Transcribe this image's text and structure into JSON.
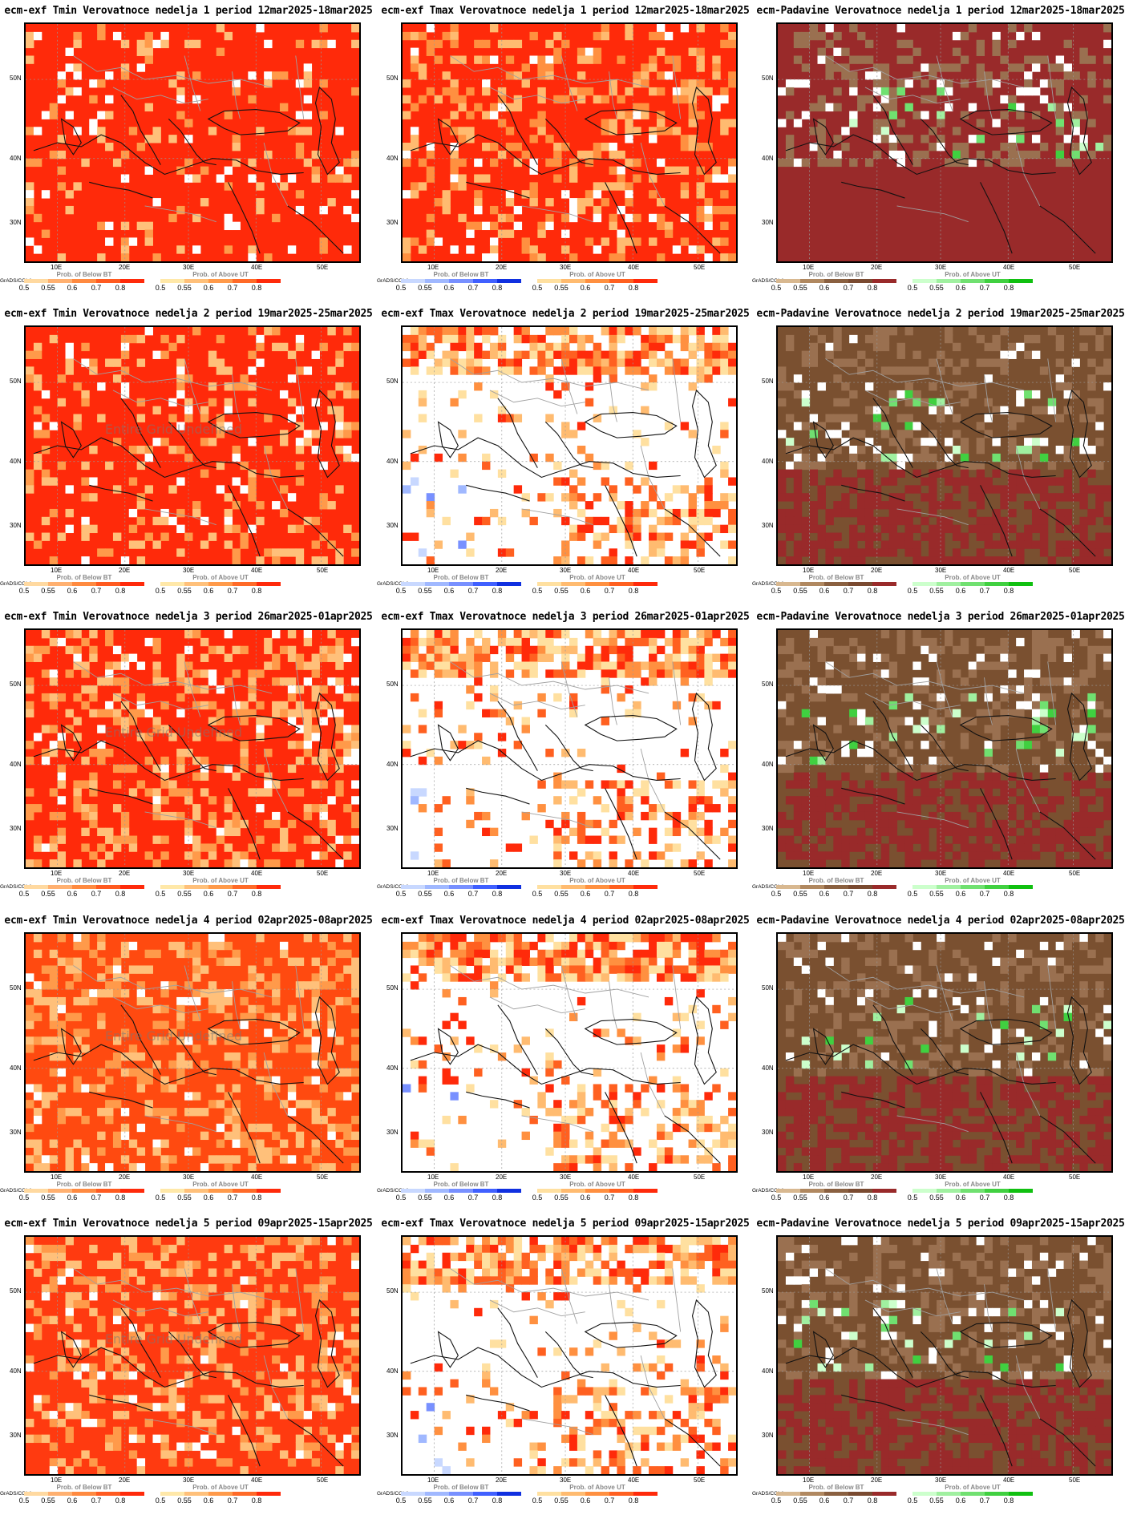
{
  "panels": [
    {
      "title": "ecm-exf Tmin Verovatnoce nedelja 1 period 12mar2025-18mar2025",
      "var": "tmin",
      "row": 0,
      "base": "#ff2a0a",
      "low_cov": 0.12,
      "bg_mode": "hot"
    },
    {
      "title": "ecm-exf Tmax Verovatnoce nedelja 1 period 12mar2025-18mar2025",
      "var": "tmax",
      "row": 0,
      "base": "#ff2a0a",
      "low_cov": 0.25,
      "bg_mode": "hot"
    },
    {
      "title": "ecm-Padavine Verovatnoce nedelja 1 period 12mar2025-18mar2025",
      "var": "prec",
      "row": 0,
      "base": "#992a2a",
      "low_cov": 0.3,
      "bg_mode": "dry"
    },
    {
      "title": "ecm-exf Tmin Verovatnoce nedelja 2 period 19mar2025-25mar2025",
      "var": "tmin",
      "row": 1,
      "base": "#ff2a0a",
      "low_cov": 0.2,
      "bg_mode": "hot",
      "watermark": "Entire Grid Undefined"
    },
    {
      "title": "ecm-exf Tmax Verovatnoce nedelja 2 period 19mar2025-25mar2025",
      "var": "tmax",
      "row": 1,
      "base": "#ffffff",
      "low_cov": 0.3,
      "bg_mode": "light"
    },
    {
      "title": "ecm-Padavine Verovatnoce nedelja 2 period 19mar2025-25mar2025",
      "var": "prec",
      "row": 1,
      "base": "#7a5030",
      "low_cov": 0.3,
      "bg_mode": "dry"
    },
    {
      "title": "ecm-exf Tmin Verovatnoce nedelja 3 period 26mar2025-01apr2025",
      "var": "tmin",
      "row": 2,
      "base": "#ff2a0a",
      "low_cov": 0.3,
      "bg_mode": "hot",
      "watermark": "Entire Grid Undefined"
    },
    {
      "title": "ecm-exf Tmax Verovatnoce nedelja 3 period 26mar2025-01apr2025",
      "var": "tmax",
      "row": 2,
      "base": "#ffffff",
      "low_cov": 0.25,
      "bg_mode": "light"
    },
    {
      "title": "ecm-Padavine Verovatnoce nedelja 3 period 26mar2025-01apr2025",
      "var": "prec",
      "row": 2,
      "base": "#7a5030",
      "low_cov": 0.3,
      "bg_mode": "dry"
    },
    {
      "title": "ecm-exf Tmin Verovatnoce nedelja 4 period 02apr2025-08apr2025",
      "var": "tmin",
      "row": 3,
      "base": "#ff4a10",
      "low_cov": 0.3,
      "bg_mode": "hot",
      "watermark": "Entire Grid Undefined"
    },
    {
      "title": "ecm-exf Tmax Verovatnoce nedelja 4 period 02apr2025-08apr2025",
      "var": "tmax",
      "row": 3,
      "base": "#ffffff",
      "low_cov": 0.2,
      "bg_mode": "light"
    },
    {
      "title": "ecm-Padavine Verovatnoce nedelja 4 period 02apr2025-08apr2025",
      "var": "prec",
      "row": 3,
      "base": "#7a5030",
      "low_cov": 0.3,
      "bg_mode": "dry"
    },
    {
      "title": "ecm-exf Tmin Verovatnoce nedelja 5 period 09apr2025-15apr2025",
      "var": "tmin",
      "row": 4,
      "base": "#ff3a10",
      "low_cov": 0.3,
      "bg_mode": "hot",
      "watermark": "Entire Grid Undefined"
    },
    {
      "title": "ecm-exf Tmax Verovatnoce nedelja 5 period 09apr2025-15apr2025",
      "var": "tmax",
      "row": 4,
      "base": "#ffffff",
      "low_cov": 0.15,
      "bg_mode": "light"
    },
    {
      "title": "ecm-Padavine Verovatnoce nedelja 5 period 09apr2025-15apr2025",
      "var": "prec",
      "row": 4,
      "base": "#7a5030",
      "low_cov": 0.3,
      "bg_mode": "dry"
    }
  ],
  "axes": {
    "lat_labels": [
      "50N",
      "40N",
      "30N"
    ],
    "lon_labels": [
      "10E",
      "20E",
      "30E",
      "40E",
      "50E"
    ]
  },
  "credit": "GrADS/COLA",
  "legends": {
    "below_title": "Prob. of Below BT",
    "above_title": "Prob. of Above UT",
    "ticks": [
      "0.5",
      "0.55",
      "0.6",
      "0.7",
      "0.8"
    ],
    "scales": {
      "tmin_below": [
        "#ffd9a0",
        "#ffb070",
        "#ff8a40",
        "#ff5a20",
        "#ff2a0a"
      ],
      "tmin_above": [
        "#ffe8a8",
        "#ffc07a",
        "#ff9a4a",
        "#ff6a28",
        "#ff2a0a"
      ],
      "tmax_below": [
        "#c8d8ff",
        "#a0b8ff",
        "#7890ff",
        "#4060ff",
        "#1030e0"
      ],
      "tmax_above": [
        "#ffe0a0",
        "#ffbb70",
        "#ff9040",
        "#ff6020",
        "#ff2a0a"
      ],
      "prec_below": [
        "#d8b890",
        "#b08860",
        "#8a6040",
        "#7a4a30",
        "#992a2a"
      ],
      "prec_above": [
        "#ccffcc",
        "#a0f0a0",
        "#70e070",
        "#40d040",
        "#10c010"
      ]
    }
  }
}
